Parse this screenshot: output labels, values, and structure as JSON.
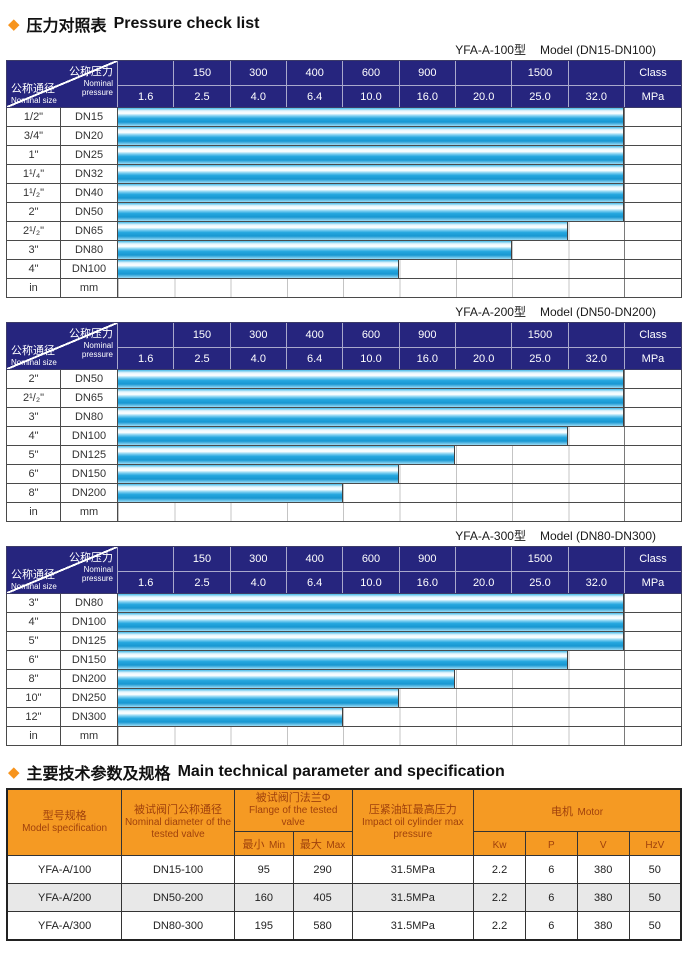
{
  "colors": {
    "header_navy": "#26257e",
    "bar_cyan": "#29a9e0",
    "accent_orange": "#f7941d",
    "spec_header_orange": "#f59a23",
    "spec_header_text": "#a0410c",
    "alt_row_gray": "#e8e8e8"
  },
  "pressure_section": {
    "bullet": "◆",
    "heading_zh": "压力对照表",
    "heading_en": "Pressure check list",
    "corner": {
      "top_zh": "公称压力",
      "top_en": [
        "Nominal",
        "pressure"
      ],
      "bottom_zh": "公称通径",
      "bottom_en": "Nominal size"
    },
    "class_row": [
      "",
      "150",
      "300",
      "400",
      "600",
      "900",
      "",
      "1500",
      "",
      "Class"
    ],
    "mpa_row": [
      "1.6",
      "2.5",
      "4.0",
      "6.4",
      "10.0",
      "16.0",
      "20.0",
      "25.0",
      "32.0",
      "MPa"
    ],
    "tables": [
      {
        "model": "YFA-A-100型",
        "range": "Model (DN15-DN100)",
        "rows": [
          {
            "inch": "1/2\"",
            "dn": "DN15",
            "bar_cols": 9
          },
          {
            "inch": "3/4\"",
            "dn": "DN20",
            "bar_cols": 9
          },
          {
            "inch": "1\"",
            "dn": "DN25",
            "bar_cols": 9
          },
          {
            "inch": "1¹/₄\"",
            "dn": "DN32",
            "bar_cols": 9
          },
          {
            "inch": "1¹/₂\"",
            "dn": "DN40",
            "bar_cols": 9
          },
          {
            "inch": "2\"",
            "dn": "DN50",
            "bar_cols": 9
          },
          {
            "inch": "2¹/₂\"",
            "dn": "DN65",
            "bar_cols": 8
          },
          {
            "inch": "3\"",
            "dn": "DN80",
            "bar_cols": 7
          },
          {
            "inch": "4\"",
            "dn": "DN100",
            "bar_cols": 5
          }
        ],
        "unit_row": {
          "inch": "in",
          "dn": "mm"
        }
      },
      {
        "model": "YFA-A-200型",
        "range": "Model (DN50-DN200)",
        "rows": [
          {
            "inch": "2\"",
            "dn": "DN50",
            "bar_cols": 9
          },
          {
            "inch": "2¹/₂\"",
            "dn": "DN65",
            "bar_cols": 9
          },
          {
            "inch": "3\"",
            "dn": "DN80",
            "bar_cols": 9
          },
          {
            "inch": "4\"",
            "dn": "DN100",
            "bar_cols": 8
          },
          {
            "inch": "5\"",
            "dn": "DN125",
            "bar_cols": 6
          },
          {
            "inch": "6\"",
            "dn": "DN150",
            "bar_cols": 5
          },
          {
            "inch": "8\"",
            "dn": "DN200",
            "bar_cols": 4
          }
        ],
        "unit_row": {
          "inch": "in",
          "dn": "mm"
        }
      },
      {
        "model": "YFA-A-300型",
        "range": "Model (DN80-DN300)",
        "rows": [
          {
            "inch": "3\"",
            "dn": "DN80",
            "bar_cols": 9
          },
          {
            "inch": "4\"",
            "dn": "DN100",
            "bar_cols": 9
          },
          {
            "inch": "5\"",
            "dn": "DN125",
            "bar_cols": 9
          },
          {
            "inch": "6\"",
            "dn": "DN150",
            "bar_cols": 8
          },
          {
            "inch": "8\"",
            "dn": "DN200",
            "bar_cols": 6
          },
          {
            "inch": "10\"",
            "dn": "DN250",
            "bar_cols": 5
          },
          {
            "inch": "12\"",
            "dn": "DN300",
            "bar_cols": 4
          }
        ],
        "unit_row": {
          "inch": "in",
          "dn": "mm"
        }
      }
    ]
  },
  "spec_section": {
    "bullet": "◆",
    "heading_zh": "主要技术参数及规格",
    "heading_en": "Main technical parameter and specification",
    "header": {
      "model_zh": "型号规格",
      "model_en": "Model specification",
      "diameter_zh": "被试阀门公称通径",
      "diameter_en": "Nominal diameter of the tested valve",
      "flange_zh": "被试阀门法兰Φ",
      "flange_en": "Flange of the tested valve",
      "min_zh": "最小",
      "min_en": "Min",
      "max_zh": "最大",
      "max_en": "Max",
      "pressure_zh": "压紧油缸最高压力",
      "pressure_en": "Impact oil cylinder max pressure",
      "motor_zh": "电机",
      "motor_en": "Motor",
      "kw": "Kw",
      "p": "P",
      "v": "V",
      "hz": "HzV"
    },
    "rows": [
      [
        "YFA-A/100",
        "DN15-100",
        "95",
        "290",
        "31.5MPa",
        "2.2",
        "6",
        "380",
        "50"
      ],
      [
        "YFA-A/200",
        "DN50-200",
        "160",
        "405",
        "31.5MPa",
        "2.2",
        "6",
        "380",
        "50"
      ],
      [
        "YFA-A/300",
        "DN80-300",
        "195",
        "580",
        "31.5MPa",
        "2.2",
        "6",
        "380",
        "50"
      ]
    ]
  }
}
